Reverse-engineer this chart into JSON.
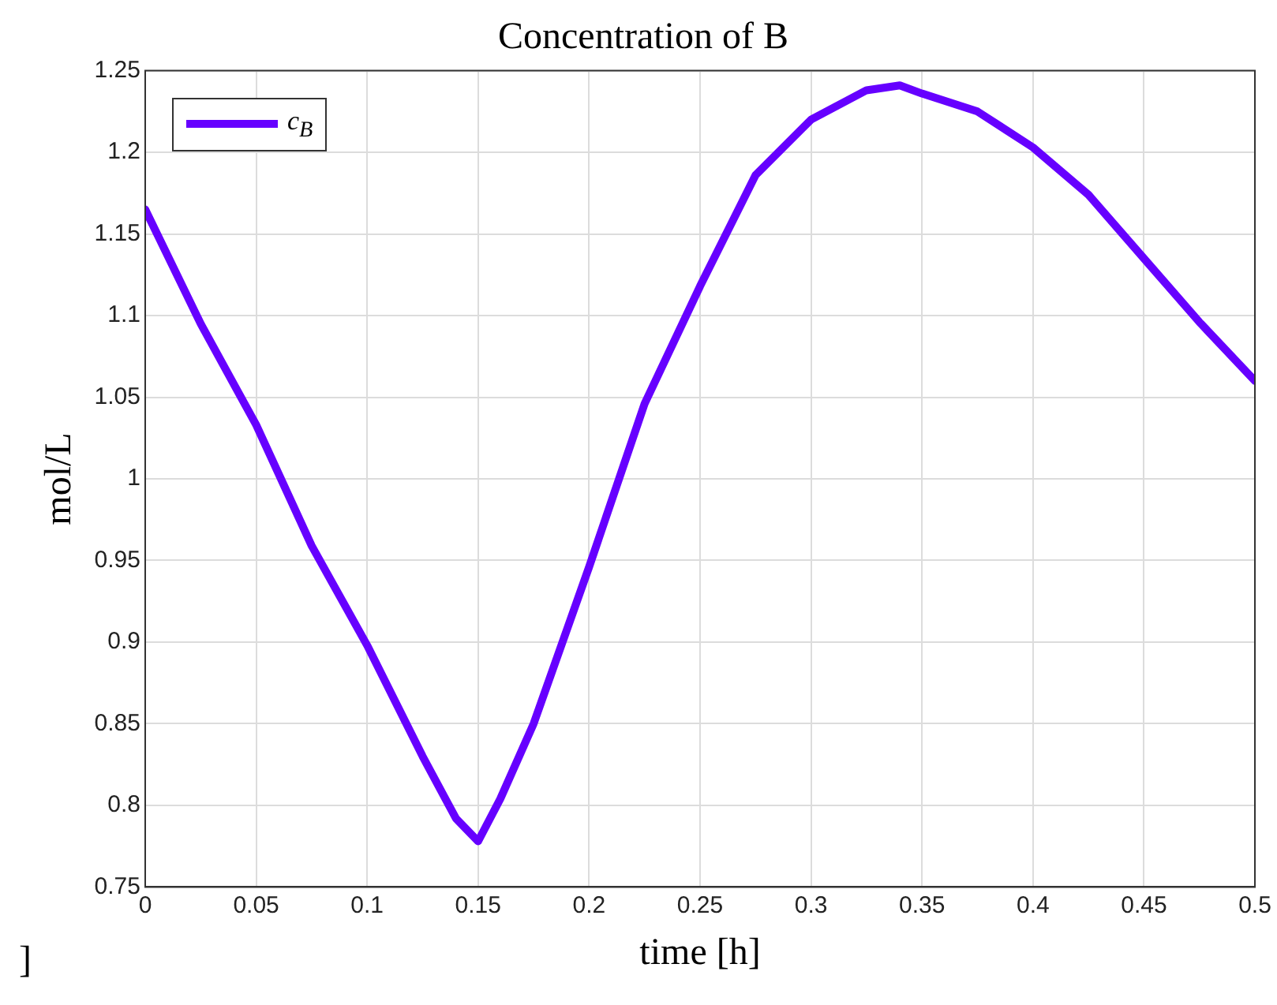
{
  "chart_data": {
    "type": "line",
    "title": "Concentration of B",
    "xlabel": "time [h]",
    "ylabel": "mol/L",
    "annotations": [
      "]"
    ],
    "x": [
      0,
      0.025,
      0.05,
      0.075,
      0.1,
      0.125,
      0.14,
      0.15,
      0.16,
      0.175,
      0.2,
      0.225,
      0.25,
      0.275,
      0.3,
      0.325,
      0.34,
      0.35,
      0.375,
      0.4,
      0.425,
      0.45,
      0.475,
      0.5
    ],
    "series": [
      {
        "name": "c$_{B}$",
        "color": "#6600ff",
        "values": [
          1.165,
          1.095,
          1.033,
          0.959,
          0.898,
          0.83,
          0.792,
          0.778,
          0.804,
          0.85,
          0.946,
          1.046,
          1.118,
          1.186,
          1.22,
          1.238,
          1.241,
          1.236,
          1.225,
          1.203,
          1.174,
          1.135,
          1.096,
          1.06
        ]
      }
    ],
    "xlim": [
      0,
      0.5
    ],
    "xticks": [
      0,
      0.05,
      0.1,
      0.15,
      0.2,
      0.25,
      0.3,
      0.35,
      0.4,
      0.45,
      0.5
    ],
    "ylim": [
      0.75,
      1.25
    ],
    "yticks": [
      0.75,
      0.8,
      0.85,
      0.9,
      0.95,
      1,
      1.05,
      1.1,
      1.15,
      1.2,
      1.25
    ],
    "grid": true,
    "legend": "top left",
    "marker": "none",
    "line_style": "solid"
  }
}
